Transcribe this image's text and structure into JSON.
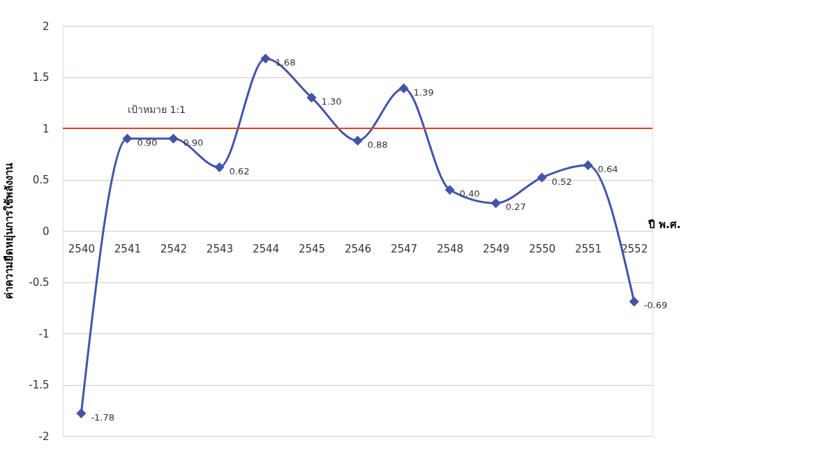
{
  "chart_data": {
    "type": "line",
    "ylabel": "ค่าความยืดหยุ่นการใช้พลังงาน",
    "xlabel": "ปี พ.ศ.",
    "categories": [
      "2540",
      "2541",
      "2542",
      "2543",
      "2544",
      "2545",
      "2546",
      "2547",
      "2548",
      "2549",
      "2550",
      "2551",
      "2552"
    ],
    "series": [
      {
        "color": "#4254a8",
        "values": [
          -1.78,
          0.9,
          0.9,
          0.62,
          1.68,
          1.3,
          0.88,
          1.39,
          0.4,
          0.27,
          0.52,
          0.64,
          -0.69
        ]
      }
    ],
    "value_labels": [
      "-1.78",
      "0.90",
      "0.90",
      "0.62",
      "1.68",
      "1.30",
      "0.88",
      "1.39",
      "0.40",
      "0.27",
      "0.52",
      "0.64",
      "-0.69"
    ],
    "ylim": [
      -2,
      2
    ],
    "yticks": [
      -2,
      {
        "value": -1.5,
        "label": "-1.5"
      },
      -1,
      {
        "value": -0.5,
        "label": "-0.5"
      },
      0,
      0.5,
      1,
      1.5,
      2
    ],
    "ref_lines": [
      {
        "axis": "y",
        "value": 1,
        "label": "เป้าหมาย 1:1",
        "color": "#e8401c"
      }
    ],
    "grid": "y",
    "marker": "diamond",
    "line_style": "solid",
    "legend": false
  }
}
